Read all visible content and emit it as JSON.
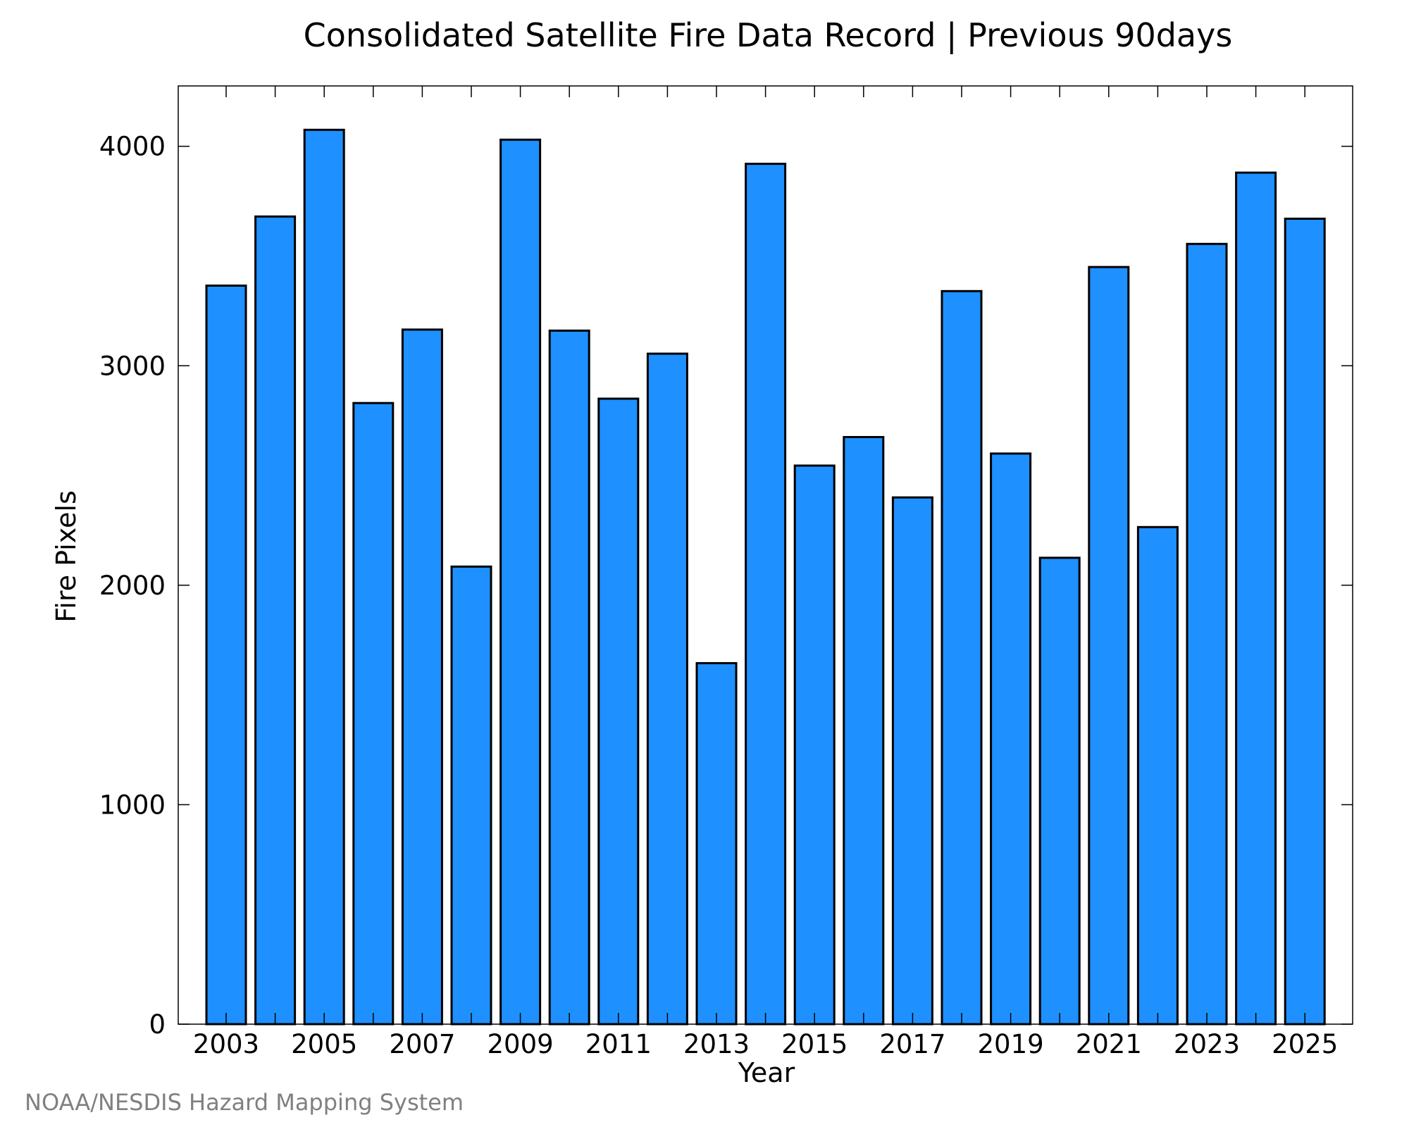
{
  "chart_data": {
    "type": "bar",
    "title": "Consolidated Satellite Fire Data Record | Previous 90days",
    "xlabel": "Year",
    "ylabel": "Fire Pixels",
    "categories": [
      "2003",
      "2004",
      "2005",
      "2006",
      "2007",
      "2008",
      "2009",
      "2010",
      "2011",
      "2012",
      "2013",
      "2014",
      "2015",
      "2016",
      "2017",
      "2018",
      "2019",
      "2020",
      "2021",
      "2022",
      "2023",
      "2024",
      "2025"
    ],
    "values": [
      3365,
      3680,
      4075,
      2830,
      3165,
      2085,
      4030,
      3160,
      2850,
      3055,
      1645,
      3920,
      2545,
      2675,
      2400,
      3340,
      2600,
      2125,
      3450,
      2265,
      3555,
      3880,
      3670
    ],
    "x_tick_labels": [
      "2003",
      "2005",
      "2007",
      "2009",
      "2011",
      "2013",
      "2015",
      "2017",
      "2019",
      "2021",
      "2023",
      "2025"
    ],
    "y_tick_labels": [
      "0",
      "1000",
      "2000",
      "3000",
      "4000"
    ],
    "y_ticks": [
      0,
      1000,
      2000,
      3000,
      4000
    ],
    "ylim": [
      0,
      4275
    ],
    "bar_color": "#1E90FF",
    "edge_color": "#000000",
    "grid": false,
    "legend": "none"
  },
  "credit": "NOAA/NESDIS Hazard Mapping System"
}
